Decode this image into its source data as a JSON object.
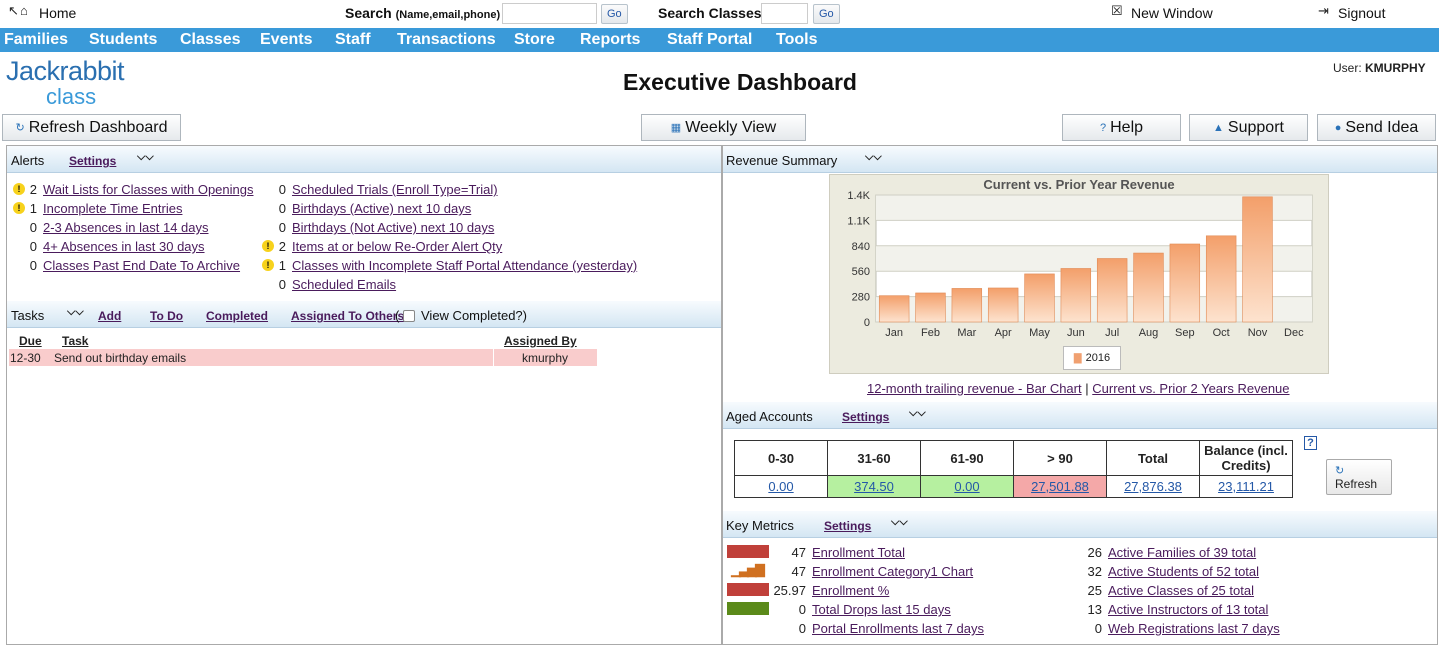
{
  "topbar": {
    "home": "Home",
    "search_label": "Search",
    "search_hint": "(Name,email,phone)",
    "go": "Go",
    "search_classes": "Search Classes:",
    "new_window": "New Window",
    "signout": "Signout"
  },
  "nav": [
    "Families",
    "Students",
    "Classes",
    "Events",
    "Staff",
    "Transactions",
    "Store",
    "Reports",
    "Staff Portal",
    "Tools"
  ],
  "logo": {
    "line1": "Jackrabbit",
    "line2": "class"
  },
  "page_title": "Executive Dashboard",
  "user": {
    "label": "User:",
    "name": "KMURPHY"
  },
  "buttons": {
    "refresh": "Refresh Dashboard",
    "weekly": "Weekly View",
    "help": "Help",
    "support": "Support",
    "idea": "Send Idea"
  },
  "alerts": {
    "title": "Alerts",
    "settings": "Settings",
    "left": [
      {
        "warn": true,
        "count": "2",
        "label": "Wait Lists for Classes with Openings"
      },
      {
        "warn": true,
        "count": "1",
        "label": "Incomplete Time Entries"
      },
      {
        "warn": false,
        "count": "0",
        "label": "2-3 Absences in last 14 days"
      },
      {
        "warn": false,
        "count": "0",
        "label": "4+ Absences in last 30 days"
      },
      {
        "warn": false,
        "count": "0",
        "label": "Classes Past End Date To Archive"
      }
    ],
    "right": [
      {
        "warn": false,
        "count": "0",
        "label": "Scheduled Trials (Enroll Type=Trial)"
      },
      {
        "warn": false,
        "count": "0",
        "label": "Birthdays (Active) next 10 days"
      },
      {
        "warn": false,
        "count": "0",
        "label": "Birthdays (Not Active) next 10 days"
      },
      {
        "warn": true,
        "count": "2",
        "label": "Items at or below Re-Order Alert Qty"
      },
      {
        "warn": true,
        "count": "1",
        "label": "Classes with Incomplete Staff Portal Attendance (yesterday)"
      },
      {
        "warn": false,
        "count": "0",
        "label": "Scheduled Emails"
      }
    ]
  },
  "tasks": {
    "title": "Tasks",
    "add": "Add",
    "todo": "To Do",
    "completed": "Completed",
    "assigned": "Assigned To Others",
    "paren": "(",
    "view_completed": "View Completed?)",
    "headers": {
      "due": "Due",
      "task": "Task",
      "by": "Assigned By"
    },
    "rows": [
      {
        "due": "12-30",
        "task": "Send out birthday emails",
        "by": "kmurphy"
      }
    ]
  },
  "revenue": {
    "title": "Revenue Summary",
    "link1": "12-month trailing revenue - Bar Chart",
    "sep": "|",
    "link2": "Current vs. Prior 2 Years Revenue"
  },
  "chart_data": {
    "type": "bar",
    "title": "Current vs. Prior Year Revenue",
    "categories": [
      "Jan",
      "Feb",
      "Mar",
      "Apr",
      "May",
      "Jun",
      "Jul",
      "Aug",
      "Sep",
      "Oct",
      "Nov",
      "Dec"
    ],
    "series": [
      {
        "name": "2016",
        "values": [
          290,
          320,
          370,
          375,
          530,
          590,
          700,
          760,
          860,
          950,
          1380,
          0
        ]
      }
    ],
    "ylim": [
      0,
      1400
    ],
    "yticks": [
      "0",
      "280",
      "560",
      "840",
      "1.1K",
      "1.4K"
    ],
    "ytick_values": [
      0,
      280,
      560,
      840,
      1120,
      1400
    ],
    "legend": "bottom-center",
    "color": "#f0a070"
  },
  "aged": {
    "title": "Aged Accounts",
    "settings": "Settings",
    "help": "?",
    "refresh": "Refresh",
    "headers": [
      "0-30",
      "31-60",
      "61-90",
      "> 90",
      "Total",
      "Balance (incl. Credits)"
    ],
    "values": [
      "0.00",
      "374.50",
      "0.00",
      "27,501.88",
      "27,876.38",
      "23,111.21"
    ]
  },
  "metrics": {
    "title": "Key Metrics",
    "settings": "Settings",
    "left": [
      {
        "count": "47",
        "label": "Enrollment Total",
        "icon": "red-bar"
      },
      {
        "count": "47",
        "label": "Enrollment Category1 Chart",
        "icon": "chart-icon"
      },
      {
        "count": "25.97",
        "label": "Enrollment %",
        "icon": "red-bar"
      },
      {
        "count": "0",
        "label": "Total Drops last 15 days",
        "icon": "green-bar"
      },
      {
        "count": "0",
        "label": "Portal Enrollments last 7 days",
        "icon": ""
      }
    ],
    "right": [
      {
        "count": "26",
        "label": "Active Families of 39 total"
      },
      {
        "count": "32",
        "label": "Active Students of 52 total"
      },
      {
        "count": "25",
        "label": "Active Classes of 25 total"
      },
      {
        "count": "13",
        "label": "Active Instructors of 13 total"
      },
      {
        "count": "0",
        "label": "Web Registrations last 7 days"
      }
    ]
  }
}
